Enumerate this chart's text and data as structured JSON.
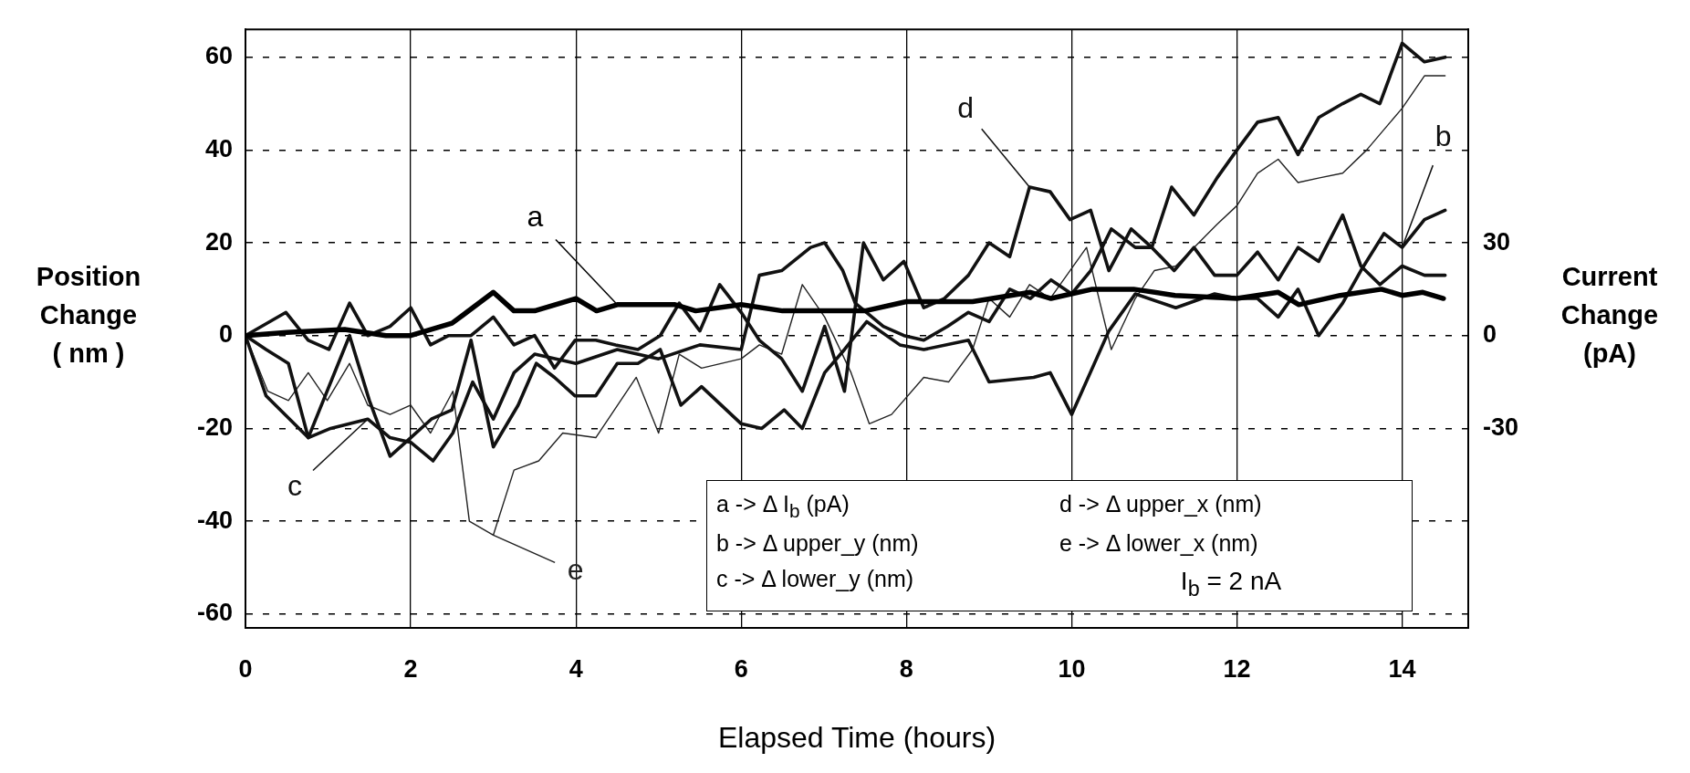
{
  "chart_data": {
    "type": "line",
    "xlabel": "Elapsed Time (hours)",
    "ylabel": "Position\nChange\n( nm )",
    "y2label": "Current\nChange\n(pA)",
    "xlim": [
      0,
      14.8
    ],
    "xticks": [
      0,
      2,
      4,
      6,
      8,
      10,
      12,
      14
    ],
    "ylim": [
      -63,
      66
    ],
    "yticks": [
      -60,
      -40,
      -20,
      0,
      20,
      40,
      60
    ],
    "y2lim": [
      -94.5,
      99
    ],
    "y2ticks": [
      -30,
      0,
      30
    ],
    "grid": true,
    "legend": false,
    "annotations": [
      "a -> Δ I$_{b}$ (pA)",
      "d -> Δ upper_x (nm)",
      "b -> Δ upper_y (nm)",
      "e -> Δ lower_x (nm)",
      "c -> Δ lower_y (nm)",
      "I$_{b}$ = 2 nA"
    ],
    "series": [
      {
        "name": "a",
        "color": "#000000",
        "axis": "y2",
        "x": [
          0,
          0.5,
          1.2,
          1.7,
          2,
          2.5,
          3,
          3.25,
          3.5,
          4,
          4.25,
          4.5,
          5.2,
          5.45,
          6,
          6.5,
          7,
          7.5,
          8,
          8.8,
          9.5,
          9.75,
          10.25,
          10.75,
          11.25,
          12,
          12.5,
          12.75,
          13.25,
          13.75,
          14,
          14.25,
          14.5
        ],
        "values": [
          0,
          1,
          2,
          0,
          0,
          4,
          14,
          8,
          8,
          12,
          8,
          10,
          10,
          8,
          10,
          8,
          8,
          8,
          11,
          11,
          14,
          12,
          15,
          15,
          13,
          12,
          14,
          10,
          13,
          15,
          13,
          14,
          12
        ]
      },
      {
        "name": "b",
        "color": "#111111",
        "x": [
          0,
          0.25,
          0.52,
          0.76,
          1.26,
          1.5,
          1.75,
          2,
          2.25,
          2.5,
          2.73,
          3,
          3.3,
          3.52,
          3.74,
          3.99,
          4.24,
          4.5,
          4.75,
          5.02,
          5.27,
          5.52,
          6,
          6.25,
          6.52,
          6.74,
          7.01,
          7.25,
          7.52,
          7.92,
          8.21,
          8.75,
          9,
          9.54,
          9.74,
          10,
          10.45,
          10.77,
          11.26,
          11.73,
          12,
          12.25,
          12.5,
          12.74,
          12.99,
          13.28,
          13.5,
          13.78,
          14,
          14.27,
          14.52
        ],
        "values": [
          0,
          -3,
          -6,
          -22,
          0,
          -14,
          -26,
          -22,
          -18,
          -16,
          -1,
          -24,
          -15,
          -6,
          -9,
          -13,
          -13,
          -6,
          -6,
          -3,
          -15,
          -11,
          -19,
          -20,
          -16,
          -20,
          -8,
          -3,
          3,
          -2,
          -3,
          -1,
          -10,
          -9,
          -8,
          -17,
          1,
          9,
          6,
          9,
          8,
          8,
          4,
          10,
          0,
          7,
          14,
          22,
          19,
          25,
          27
        ]
      },
      {
        "name": "c",
        "color": "#111111",
        "x": [
          0,
          0.25,
          0.76,
          1.03,
          1.48,
          1.75,
          2,
          2.27,
          2.51,
          2.75,
          3,
          3.25,
          3.5,
          4,
          4.5,
          5,
          5.5,
          6,
          6.22,
          6.49,
          6.84,
          7.01,
          7.23,
          7.38,
          7.72,
          7.97,
          8.21,
          8.5,
          8.75,
          9,
          9.25,
          9.5,
          9.75,
          10,
          10.23,
          10.48,
          10.77,
          10.97,
          11.24,
          11.48,
          11.73,
          12,
          12.25,
          12.5,
          12.74,
          12.99,
          13.28,
          13.5,
          13.73,
          14,
          14.27,
          14.52
        ],
        "values": [
          0,
          -13,
          -22,
          -20,
          -18,
          -22,
          -23,
          -27,
          -21,
          -10,
          -18,
          -8,
          -4,
          -6,
          -3,
          -5,
          -2,
          -3,
          13,
          14,
          19,
          20,
          14,
          7,
          2,
          0,
          -1,
          2,
          5,
          3,
          10,
          8,
          12,
          9,
          14,
          23,
          19,
          19,
          14,
          19,
          13,
          13,
          18,
          12,
          19,
          16,
          26,
          15,
          11,
          15,
          13,
          13
        ]
      },
      {
        "name": "d",
        "color": "#111111",
        "x": [
          0,
          0.49,
          0.76,
          1.01,
          1.26,
          1.48,
          1.75,
          2,
          2.24,
          2.46,
          2.73,
          3,
          3.25,
          3.5,
          3.74,
          3.99,
          4.24,
          4.48,
          4.75,
          5.02,
          5.25,
          5.5,
          5.74,
          6,
          6.22,
          6.49,
          6.74,
          7.01,
          7.25,
          7.48,
          7.72,
          7.97,
          8.21,
          8.46,
          8.75,
          9,
          9.25,
          9.49,
          9.74,
          9.98,
          10.23,
          10.45,
          10.72,
          10.97,
          11.21,
          11.48,
          11.76,
          12,
          12.25,
          12.5,
          12.74,
          12.99,
          13.28,
          13.5,
          13.73,
          14,
          14.27,
          14.52
        ],
        "values": [
          0,
          5,
          -1,
          -3,
          7,
          0,
          2,
          6,
          -2,
          0,
          0,
          4,
          -2,
          0,
          -7,
          -1,
          -1,
          -2,
          -3,
          0,
          7,
          1,
          11,
          5,
          -1,
          -5,
          -12,
          2,
          -12,
          20,
          12,
          16,
          6,
          8,
          13,
          20,
          17,
          32,
          31,
          25,
          27,
          14,
          23,
          19,
          32,
          26,
          34,
          40,
          46,
          47,
          39,
          47,
          50,
          52,
          50,
          63,
          59,
          60
        ]
      },
      {
        "name": "e",
        "color": "#222222",
        "x": [
          0,
          0.27,
          0.52,
          0.76,
          0.99,
          1.26,
          1.48,
          1.75,
          2,
          2.24,
          2.51,
          2.71,
          3,
          3.25,
          3.55,
          3.84,
          4.24,
          4.73,
          5,
          5.25,
          5.52,
          6,
          6.22,
          6.49,
          6.74,
          7.01,
          7.33,
          7.55,
          7.82,
          8.21,
          8.51,
          8.8,
          9,
          9.25,
          9.49,
          9.74,
          10.18,
          10.48,
          10.77,
          11,
          11.26,
          11.76,
          12,
          12.25,
          12.5,
          12.74,
          13,
          13.28,
          13.57,
          14,
          14.27,
          14.52
        ],
        "values": [
          0,
          -12,
          -14,
          -8,
          -14,
          -6,
          -15,
          -17,
          -15,
          -21,
          -12,
          -40,
          -43,
          -29,
          -27,
          -21,
          -22,
          -9,
          -21,
          -4,
          -7,
          -5,
          -2,
          -4,
          11,
          4,
          -8,
          -19,
          -17,
          -9,
          -10,
          -3,
          8,
          4,
          11,
          8,
          19,
          -3,
          8,
          14,
          15,
          24,
          28,
          35,
          38,
          33,
          34,
          35,
          40,
          49,
          56,
          56
        ]
      }
    ]
  }
}
